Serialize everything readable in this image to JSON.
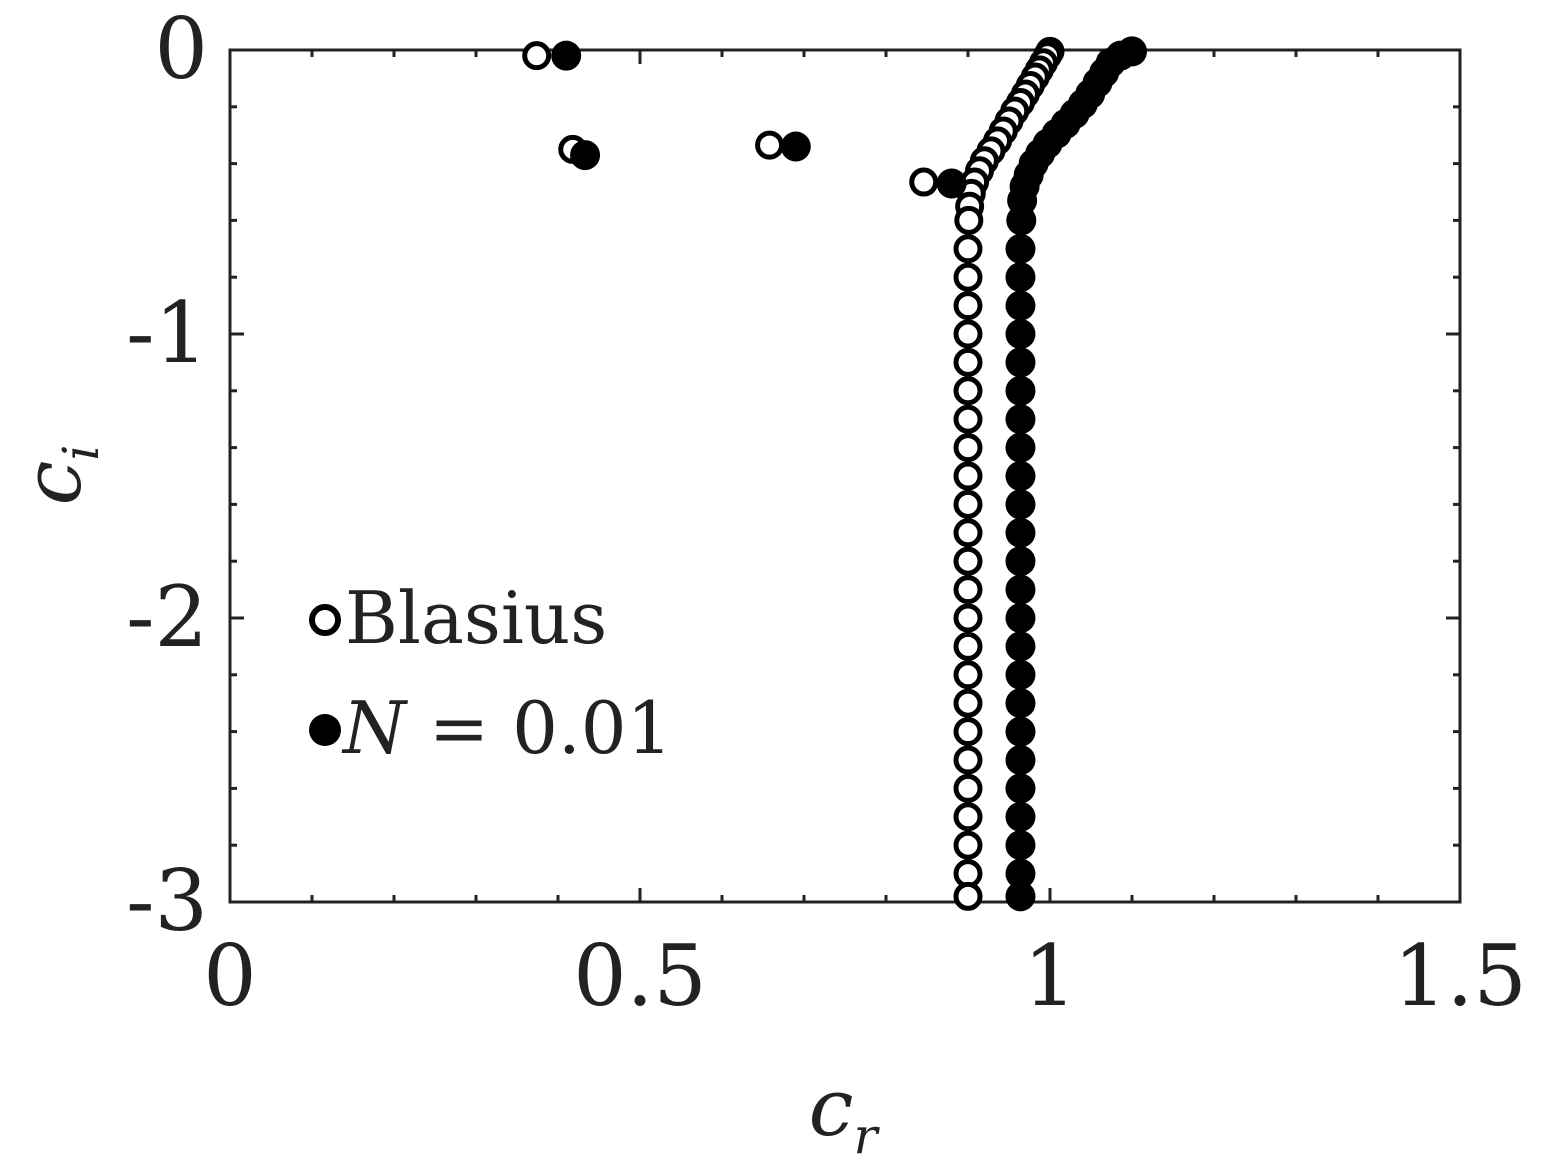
{
  "chart_data": {
    "type": "scatter",
    "xlabel": "c_r",
    "ylabel": "c_i",
    "xlim": [
      0,
      1.5
    ],
    "ylim": [
      -3,
      0
    ],
    "x_ticks": [
      "0",
      "0.5",
      "1",
      "1.5"
    ],
    "y_ticks": [
      "0",
      "-1",
      "-2",
      "-3"
    ],
    "legend_position": "lower-left",
    "grid": false,
    "series": [
      {
        "name": "Blasius",
        "marker": "open-circle",
        "color": "#000000",
        "points": [
          [
            0.374,
            -0.02
          ],
          [
            0.418,
            -0.35
          ],
          [
            0.658,
            -0.335
          ],
          [
            0.846,
            -0.465
          ],
          [
            1.0,
            -0.005
          ],
          [
            0.997,
            -0.02
          ],
          [
            0.992,
            -0.045
          ],
          [
            0.987,
            -0.07
          ],
          [
            0.982,
            -0.095
          ],
          [
            0.976,
            -0.125
          ],
          [
            0.97,
            -0.155
          ],
          [
            0.964,
            -0.185
          ],
          [
            0.957,
            -0.215
          ],
          [
            0.95,
            -0.25
          ],
          [
            0.943,
            -0.285
          ],
          [
            0.936,
            -0.32
          ],
          [
            0.928,
            -0.355
          ],
          [
            0.92,
            -0.39
          ],
          [
            0.914,
            -0.425
          ],
          [
            0.908,
            -0.465
          ],
          [
            0.904,
            -0.505
          ],
          [
            0.902,
            -0.55
          ],
          [
            0.901,
            -0.6
          ],
          [
            0.9,
            -0.7
          ],
          [
            0.9,
            -0.8
          ],
          [
            0.9,
            -0.9
          ],
          [
            0.9,
            -1.0
          ],
          [
            0.9,
            -1.1
          ],
          [
            0.9,
            -1.2
          ],
          [
            0.9,
            -1.3
          ],
          [
            0.9,
            -1.4
          ],
          [
            0.9,
            -1.5
          ],
          [
            0.9,
            -1.6
          ],
          [
            0.9,
            -1.7
          ],
          [
            0.9,
            -1.8
          ],
          [
            0.9,
            -1.9
          ],
          [
            0.9,
            -2.0
          ],
          [
            0.9,
            -2.1
          ],
          [
            0.9,
            -2.2
          ],
          [
            0.9,
            -2.3
          ],
          [
            0.9,
            -2.4
          ],
          [
            0.9,
            -2.5
          ],
          [
            0.9,
            -2.6
          ],
          [
            0.9,
            -2.7
          ],
          [
            0.9,
            -2.8
          ],
          [
            0.9,
            -2.9
          ],
          [
            0.9,
            -2.98
          ]
        ]
      },
      {
        "name": "N = 0.01",
        "marker": "filled-circle",
        "color": "#000000",
        "points": [
          [
            0.41,
            -0.02
          ],
          [
            0.433,
            -0.37
          ],
          [
            0.69,
            -0.34
          ],
          [
            0.88,
            -0.47
          ],
          [
            1.1,
            -0.005
          ],
          [
            1.086,
            -0.02
          ],
          [
            1.074,
            -0.045
          ],
          [
            1.066,
            -0.08
          ],
          [
            1.058,
            -0.115
          ],
          [
            1.049,
            -0.155
          ],
          [
            1.04,
            -0.19
          ],
          [
            1.03,
            -0.225
          ],
          [
            1.019,
            -0.26
          ],
          [
            1.008,
            -0.295
          ],
          [
            0.997,
            -0.33
          ],
          [
            0.988,
            -0.365
          ],
          [
            0.98,
            -0.4
          ],
          [
            0.974,
            -0.44
          ],
          [
            0.969,
            -0.48
          ],
          [
            0.966,
            -0.53
          ],
          [
            0.965,
            -0.6
          ],
          [
            0.964,
            -0.7
          ],
          [
            0.964,
            -0.8
          ],
          [
            0.964,
            -0.9
          ],
          [
            0.964,
            -1.0
          ],
          [
            0.964,
            -1.1
          ],
          [
            0.964,
            -1.2
          ],
          [
            0.964,
            -1.3
          ],
          [
            0.964,
            -1.4
          ],
          [
            0.964,
            -1.5
          ],
          [
            0.964,
            -1.6
          ],
          [
            0.964,
            -1.7
          ],
          [
            0.964,
            -1.8
          ],
          [
            0.964,
            -1.9
          ],
          [
            0.964,
            -2.0
          ],
          [
            0.964,
            -2.1
          ],
          [
            0.964,
            -2.2
          ],
          [
            0.964,
            -2.3
          ],
          [
            0.964,
            -2.4
          ],
          [
            0.964,
            -2.5
          ],
          [
            0.964,
            -2.6
          ],
          [
            0.964,
            -2.7
          ],
          [
            0.964,
            -2.8
          ],
          [
            0.964,
            -2.9
          ],
          [
            0.964,
            -2.98
          ]
        ]
      }
    ],
    "legend": {
      "entries": [
        {
          "label": "Blasius",
          "marker": "open-circle"
        },
        {
          "label_italic": "N",
          "label_rest": " = 0.01",
          "marker": "filled-circle"
        }
      ]
    }
  }
}
